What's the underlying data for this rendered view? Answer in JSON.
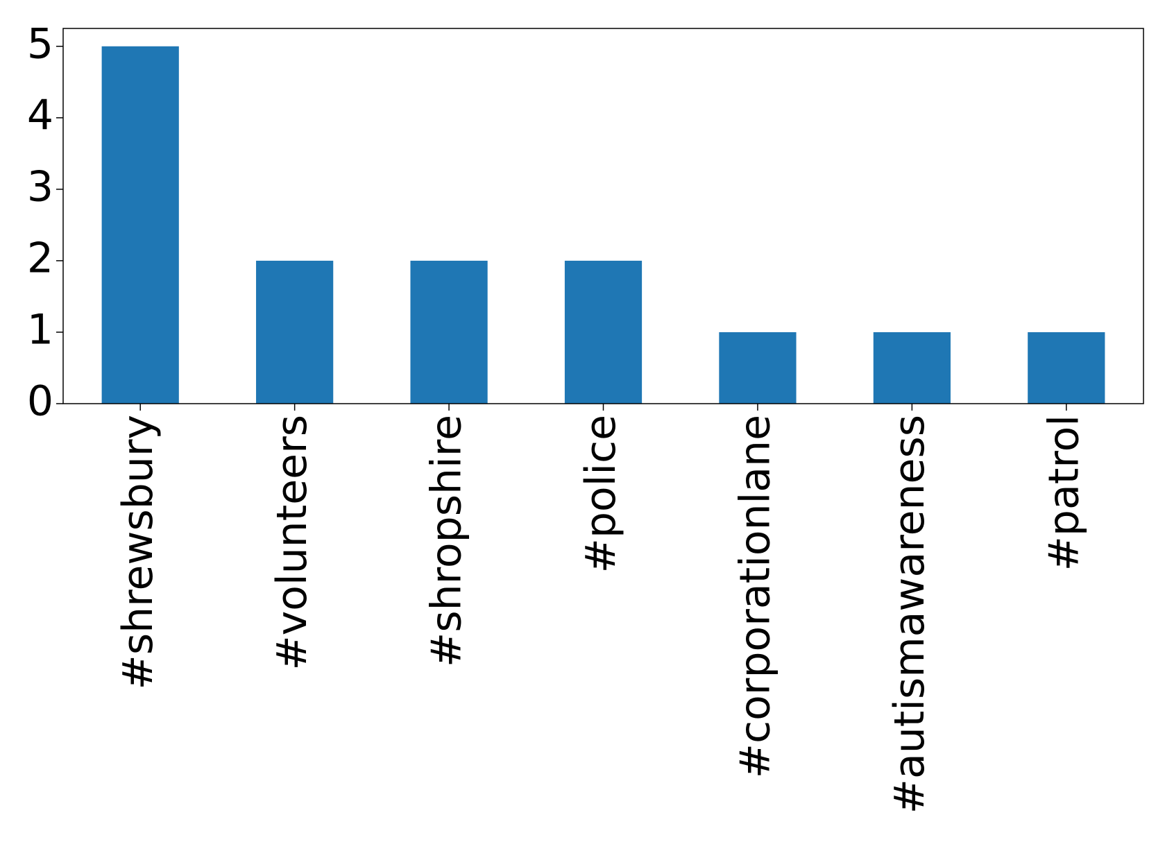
{
  "chart_data": {
    "type": "bar",
    "categories": [
      "#shrewsbury",
      "#volunteers",
      "#shropshire",
      "#police",
      "#corporationlane",
      "#autismawareness",
      "#patrol"
    ],
    "values": [
      5,
      2,
      2,
      2,
      1,
      1,
      1
    ],
    "color": "#1f77b4",
    "ylim": [
      0,
      5.25
    ],
    "yticks": [
      0,
      1,
      2,
      3,
      4,
      5
    ],
    "grid": false
  }
}
